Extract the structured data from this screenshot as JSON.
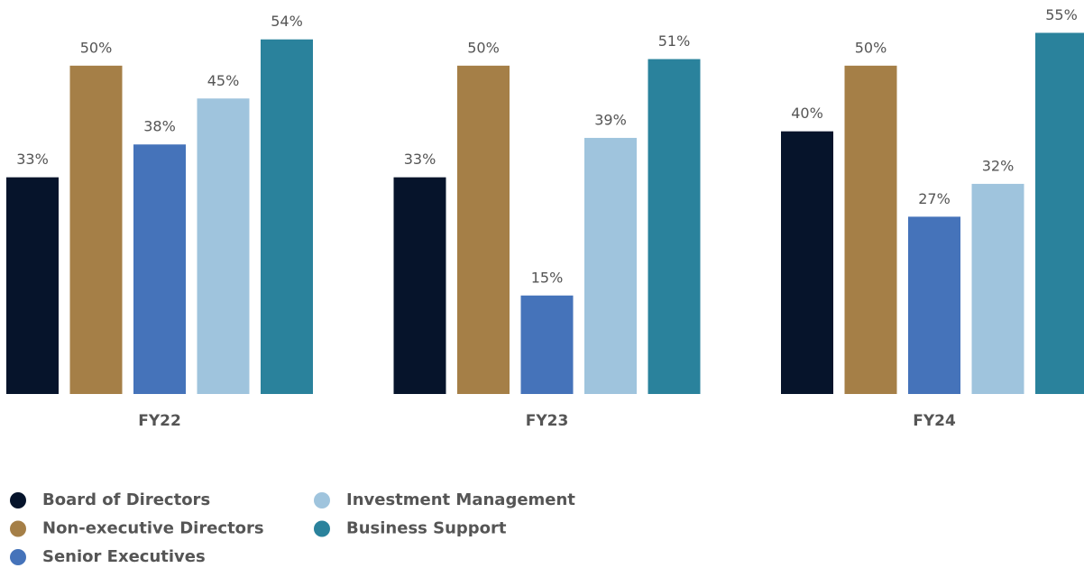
{
  "chart_data": {
    "type": "bar",
    "categories": [
      "FY22",
      "FY23",
      "FY24"
    ],
    "series": [
      {
        "name": "Board of Directors",
        "color": "#06142b",
        "values": [
          33,
          33,
          40
        ],
        "value_labels": [
          "33%",
          "33%",
          "40%"
        ]
      },
      {
        "name": "Non-executive Directors",
        "color": "#a57f47",
        "values": [
          50,
          50,
          50
        ],
        "value_labels": [
          "50%",
          "50%",
          "50%"
        ]
      },
      {
        "name": "Senior Executives",
        "color": "#4573ba",
        "values": [
          38,
          15,
          27
        ],
        "value_labels": [
          "38%",
          "15%",
          "27%"
        ]
      },
      {
        "name": "Investment Management",
        "color": "#9fc4dd",
        "values": [
          45,
          39,
          32
        ],
        "value_labels": [
          "45%",
          "39%",
          "32%"
        ]
      },
      {
        "name": "Business Support",
        "color": "#2a829c",
        "values": [
          54,
          51,
          55
        ],
        "value_labels": [
          "54%",
          "51%",
          "55%"
        ]
      }
    ],
    "ylim": [
      0,
      60
    ]
  }
}
